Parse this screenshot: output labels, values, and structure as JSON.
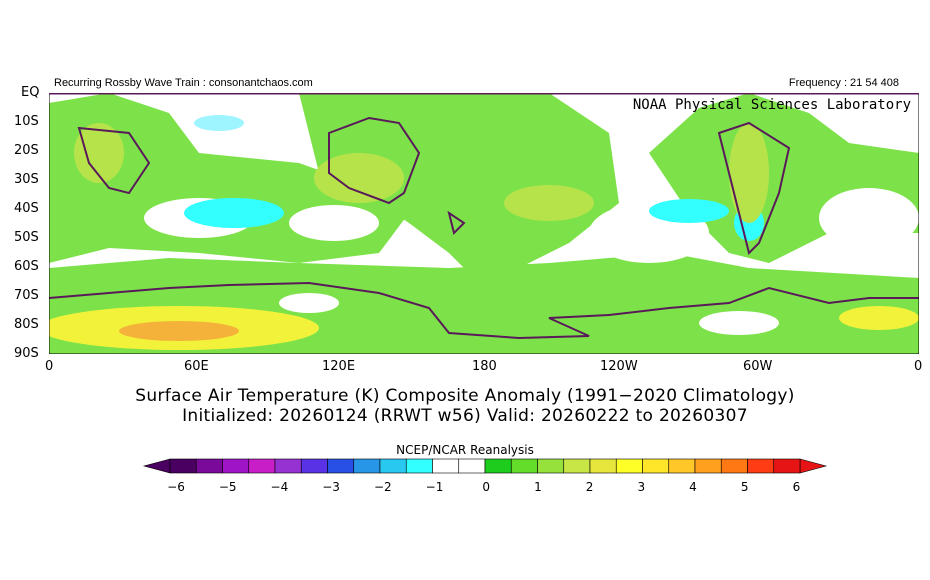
{
  "header": {
    "left_text": "Recurring Rossby Wave Train : consonantchaos.com",
    "right_text": "Frequency : 21 54 408",
    "watermark": "NOAA  Physical  Sciences  Laboratory"
  },
  "map": {
    "region": "Southern Hemisphere, 0 to 90S, 0 to 360",
    "lat_labels": [
      "EQ",
      "10S",
      "20S",
      "30S",
      "40S",
      "50S",
      "60S",
      "70S",
      "80S",
      "90S"
    ],
    "lon_labels": [
      "0",
      "60E",
      "120E",
      "180",
      "120W",
      "60W",
      "0"
    ],
    "colors": {
      "land_outline": "#5a1a5a",
      "light_green": "#7de24a",
      "green": "#3fd41a",
      "yellow_green": "#b6e34a",
      "yellow": "#f2f23a",
      "orange_light": "#f5d23a",
      "cyan": "#33ffff",
      "light_cyan": "#9ff5ff"
    }
  },
  "titles": {
    "line1": "Surface Air Temperature (K) Composite Anomaly (1991−2020 Climatology)",
    "line2": "Initialized: 20260124 (RRWT w56) Valid: 20260222 to 20260307"
  },
  "colorbar": {
    "title": "NCEP/NCAR Reanalysis",
    "tick_labels": [
      "−6",
      "−5",
      "−4",
      "−3",
      "−2",
      "−1",
      "0",
      "1",
      "2",
      "3",
      "4",
      "5",
      "6"
    ],
    "colors": [
      "#4a0060",
      "#7a0a9a",
      "#a014c8",
      "#c81ec8",
      "#9632d2",
      "#5a32e6",
      "#2850e6",
      "#2896e6",
      "#28c8f0",
      "#32ffff",
      "#ffffff",
      "#ffffff",
      "#1ecc1e",
      "#64dc2a",
      "#96e13c",
      "#c8e646",
      "#e6e63c",
      "#ffff28",
      "#ffe628",
      "#ffc828",
      "#ffa01e",
      "#ff7814",
      "#ff3c14",
      "#e61414"
    ]
  }
}
